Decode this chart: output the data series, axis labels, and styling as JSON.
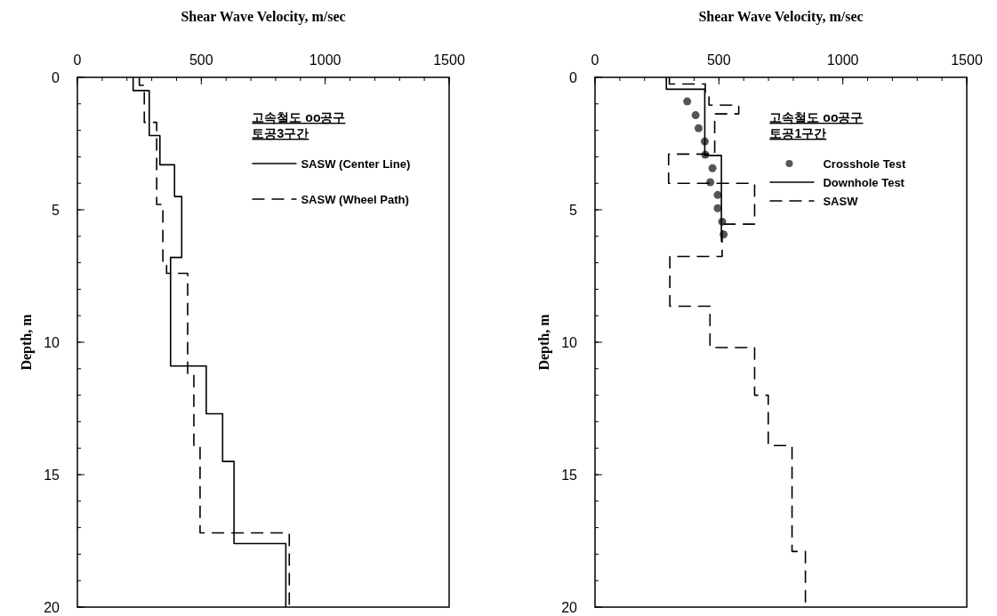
{
  "chart_data": [
    {
      "type": "line",
      "xlabel": "Shear Wave Velocity, m/sec",
      "ylabel": "Depth, m",
      "xlim": [
        0,
        1500
      ],
      "xticks": [
        0,
        500,
        1000,
        1500
      ],
      "ylim": [
        20,
        0
      ],
      "yticks": [
        0,
        5,
        10,
        15,
        20
      ],
      "legend": "top right",
      "legend_title": "고속철도 oo공구\n토공3구간",
      "series": [
        {
          "name": "SASW (Center Line)",
          "line_style": "solid",
          "color": "#000000",
          "x": [
            225,
            225,
            290,
            290,
            333,
            333,
            392,
            392,
            421,
            421,
            376,
            376,
            520,
            520,
            586,
            586,
            632,
            632,
            841,
            841
          ],
          "values": [
            0,
            0.5,
            0.5,
            2.2,
            2.2,
            3.3,
            3.3,
            4.5,
            4.5,
            6.8,
            6.8,
            10.9,
            10.9,
            12.7,
            12.7,
            14.5,
            14.5,
            17.6,
            17.6,
            20
          ]
        },
        {
          "name": "SASW (Wheel Path)",
          "line_style": "dashed",
          "color": "#000000",
          "x": [
            250,
            250,
            270,
            270,
            320,
            320,
            345,
            345,
            360,
            360,
            445,
            445,
            470,
            470,
            495,
            495,
            855,
            855
          ],
          "values": [
            0,
            0.3,
            0.3,
            1.7,
            1.7,
            4.8,
            4.8,
            7.1,
            7.1,
            7.4,
            7.4,
            11.2,
            11.2,
            13.9,
            13.9,
            17.2,
            17.2,
            20
          ]
        }
      ]
    },
    {
      "type": "line",
      "xlabel": "Shear Wave Velocity, m/sec",
      "ylabel": "Depth, m",
      "xlim": [
        0,
        1500
      ],
      "xticks": [
        0,
        500,
        1000,
        1500
      ],
      "ylim": [
        20,
        0
      ],
      "yticks": [
        0,
        5,
        10,
        15,
        20
      ],
      "legend": "top right",
      "legend_title": "고속철도 oo공구\n토공1구간",
      "series": [
        {
          "name": "Crosshole Test",
          "type": "scatter",
          "marker": "circle",
          "color": "#555555",
          "x": [
            372,
            406,
            418,
            443,
            445,
            474,
            465,
            495,
            495,
            513,
            519
          ],
          "values": [
            0.91,
            1.43,
            1.92,
            2.42,
            2.92,
            3.43,
            3.96,
            4.44,
            4.94,
            5.45,
            5.93
          ]
        },
        {
          "name": "Downhole Test",
          "line_style": "solid",
          "color": "#000000",
          "x": [
            288,
            288,
            443,
            443,
            510,
            510
          ],
          "values": [
            0,
            0.45,
            0.45,
            2.95,
            2.95,
            6.2
          ]
        },
        {
          "name": "SASW",
          "line_style": "dashed",
          "color": "#000000",
          "x": [
            300,
            300,
            445,
            445,
            460,
            460,
            580,
            580,
            483,
            483,
            297,
            297,
            626,
            626,
            644,
            644,
            513,
            513,
            302,
            302,
            464,
            464,
            644,
            644,
            699,
            699,
            795,
            795,
            849,
            849
          ],
          "values": [
            0,
            0.25,
            0.25,
            0.6,
            0.6,
            1.05,
            1.05,
            1.38,
            1.38,
            2.9,
            2.9,
            4.0,
            4.0,
            4.0,
            4.0,
            5.54,
            5.54,
            6.76,
            6.76,
            8.64,
            8.64,
            10.2,
            10.2,
            12.0,
            12.0,
            13.9,
            13.9,
            17.9,
            17.9,
            20
          ]
        }
      ]
    }
  ]
}
